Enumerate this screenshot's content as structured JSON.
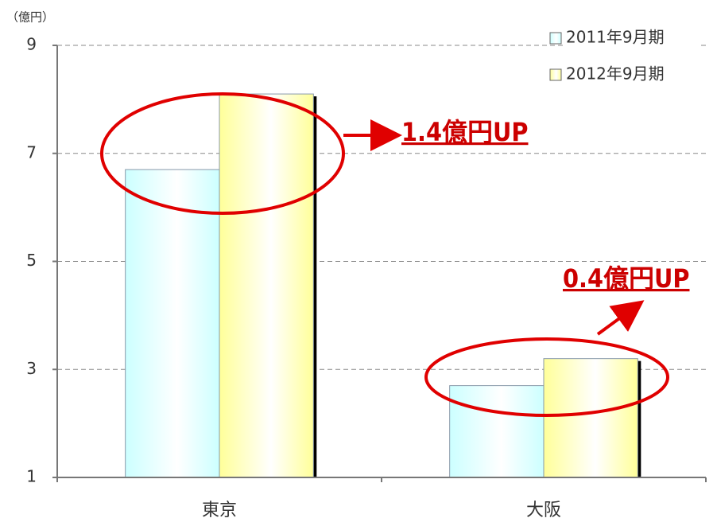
{
  "chart_data": {
    "type": "bar",
    "y_axis_label": "（億円）",
    "categories": [
      "東京",
      "大阪"
    ],
    "series": [
      {
        "name": "2011年9月期",
        "color": "#ccffff",
        "values": [
          6.7,
          2.7
        ]
      },
      {
        "name": "2012年9月期",
        "color": "#ffff99",
        "values": [
          8.1,
          3.2
        ]
      }
    ],
    "ylim": [
      1,
      9
    ],
    "yticks": [
      1,
      3,
      5,
      7,
      9
    ],
    "grid": true,
    "legend": "top-right",
    "annotations": [
      "1.4億円UP",
      "0.4億円UP"
    ]
  }
}
